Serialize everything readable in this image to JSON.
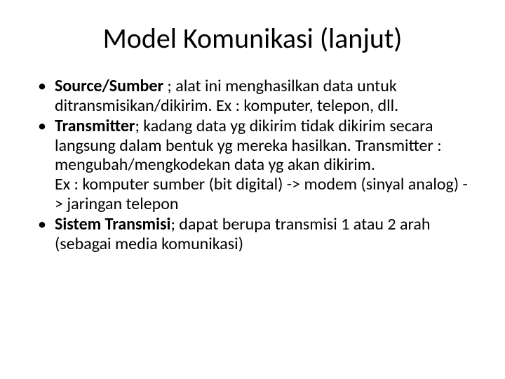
{
  "title": "Model Komunikasi (lanjut)",
  "bullets": [
    {
      "term": "Source/Sumber ",
      "text": "; alat ini menghasilkan data untuk ditransmisikan/dikirim. Ex : komputer, telepon, dll."
    },
    {
      "term": "Transmitter",
      "text": "; kadang data yg dikirim tidak dikirim secara langsung dalam bentuk yg mereka hasilkan. Transmitter : mengubah/mengkodekan data yg akan dikirim.",
      "sub": "Ex : komputer sumber (bit digital) -> modem (sinyal analog)   -> jaringan telepon"
    },
    {
      "term": "Sistem Transmisi",
      "text": "; dapat berupa transmisi 1 atau 2 arah (sebagai media komunikasi)"
    }
  ],
  "colors": {
    "background": "#ffffff",
    "text": "#000000"
  },
  "typography": {
    "title_fontsize": 40,
    "body_fontsize": 24,
    "font_family": "Calibri"
  }
}
